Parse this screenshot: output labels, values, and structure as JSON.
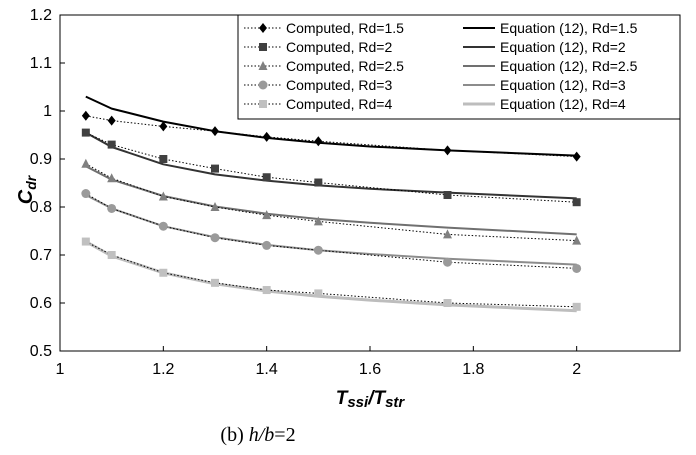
{
  "chart_data": {
    "type": "line",
    "xlabel": {
      "main": "T",
      "sub1": "ssi",
      "slash": "/T",
      "sub2": "str"
    },
    "ylabel": {
      "main": "C",
      "sub": "dr"
    },
    "xlim": [
      1,
      2.2
    ],
    "ylim": [
      0.5,
      1.2
    ],
    "xticks": [
      1,
      1.2,
      1.4,
      1.6,
      1.8,
      2
    ],
    "xtick_labels": [
      "1",
      "1.2",
      "1.4",
      "1.6",
      "1.8",
      "2"
    ],
    "yticks": [
      0.5,
      0.6,
      0.7,
      0.8,
      0.9,
      1.0,
      1.1,
      1.2
    ],
    "ytick_labels": [
      "0.5",
      "0.6",
      "0.7",
      "0.8",
      "0.9",
      "1",
      "1.1",
      "1.2"
    ],
    "grid": false,
    "legend_position": "top-right",
    "computed_series": [
      {
        "name": "Computed, Rd=1.5",
        "marker": "diamond",
        "color": "#000000",
        "x": [
          1.05,
          1.1,
          1.2,
          1.3,
          1.4,
          1.5,
          1.75,
          2.0
        ],
        "y": [
          0.99,
          0.98,
          0.968,
          0.958,
          0.946,
          0.937,
          0.918,
          0.905
        ]
      },
      {
        "name": "Computed, Rd=2",
        "marker": "square",
        "color": "#404040",
        "x": [
          1.05,
          1.1,
          1.2,
          1.3,
          1.4,
          1.5,
          1.75,
          2.0
        ],
        "y": [
          0.955,
          0.93,
          0.9,
          0.88,
          0.862,
          0.851,
          0.825,
          0.81
        ]
      },
      {
        "name": "Computed, Rd=2.5",
        "marker": "triangle",
        "color": "#808080",
        "x": [
          1.05,
          1.1,
          1.2,
          1.3,
          1.4,
          1.5,
          1.75,
          2.0
        ],
        "y": [
          0.89,
          0.86,
          0.822,
          0.8,
          0.783,
          0.77,
          0.743,
          0.73
        ]
      },
      {
        "name": "Computed, Rd=3",
        "marker": "circle",
        "color": "#9a9a9a",
        "x": [
          1.05,
          1.1,
          1.2,
          1.3,
          1.4,
          1.5,
          1.75,
          2.0
        ],
        "y": [
          0.828,
          0.797,
          0.76,
          0.736,
          0.72,
          0.71,
          0.685,
          0.672
        ]
      },
      {
        "name": "Computed, Rd=4",
        "marker": "square",
        "color": "#c0c0c0",
        "x": [
          1.05,
          1.1,
          1.2,
          1.3,
          1.4,
          1.5,
          1.75,
          2.0
        ],
        "y": [
          0.728,
          0.7,
          0.663,
          0.642,
          0.627,
          0.62,
          0.6,
          0.592
        ]
      }
    ],
    "equation_series": [
      {
        "name": "Equation (12), Rd=1.5",
        "color": "#000000",
        "width": 2,
        "x": [
          1.05,
          1.1,
          1.2,
          1.3,
          1.4,
          1.5,
          1.6,
          1.75,
          2.0
        ],
        "y": [
          1.03,
          1.005,
          0.978,
          0.958,
          0.944,
          0.934,
          0.926,
          0.918,
          0.907
        ]
      },
      {
        "name": "Equation (12), Rd=2",
        "color": "#333333",
        "width": 2,
        "x": [
          1.05,
          1.1,
          1.2,
          1.3,
          1.4,
          1.5,
          1.6,
          1.75,
          2.0
        ],
        "y": [
          0.955,
          0.925,
          0.889,
          0.868,
          0.855,
          0.845,
          0.838,
          0.83,
          0.818
        ]
      },
      {
        "name": "Equation (12), Rd=2.5",
        "color": "#707070",
        "width": 2,
        "x": [
          1.05,
          1.1,
          1.2,
          1.3,
          1.4,
          1.5,
          1.6,
          1.75,
          2.0
        ],
        "y": [
          0.885,
          0.857,
          0.823,
          0.801,
          0.786,
          0.775,
          0.767,
          0.757,
          0.743
        ]
      },
      {
        "name": "Equation (12), Rd=3",
        "color": "#8c8c8c",
        "width": 2,
        "x": [
          1.05,
          1.1,
          1.2,
          1.3,
          1.4,
          1.5,
          1.6,
          1.75,
          2.0
        ],
        "y": [
          0.825,
          0.797,
          0.76,
          0.737,
          0.721,
          0.71,
          0.702,
          0.692,
          0.68
        ]
      },
      {
        "name": "Equation (12), Rd=4",
        "color": "#bdbdbd",
        "width": 3,
        "x": [
          1.05,
          1.1,
          1.2,
          1.3,
          1.4,
          1.5,
          1.6,
          1.75,
          2.0
        ],
        "y": [
          0.728,
          0.698,
          0.663,
          0.64,
          0.625,
          0.614,
          0.606,
          0.596,
          0.584
        ]
      }
    ]
  },
  "caption": {
    "prefix": "(b) ",
    "italic": "h/b",
    "suffix": "=2"
  }
}
